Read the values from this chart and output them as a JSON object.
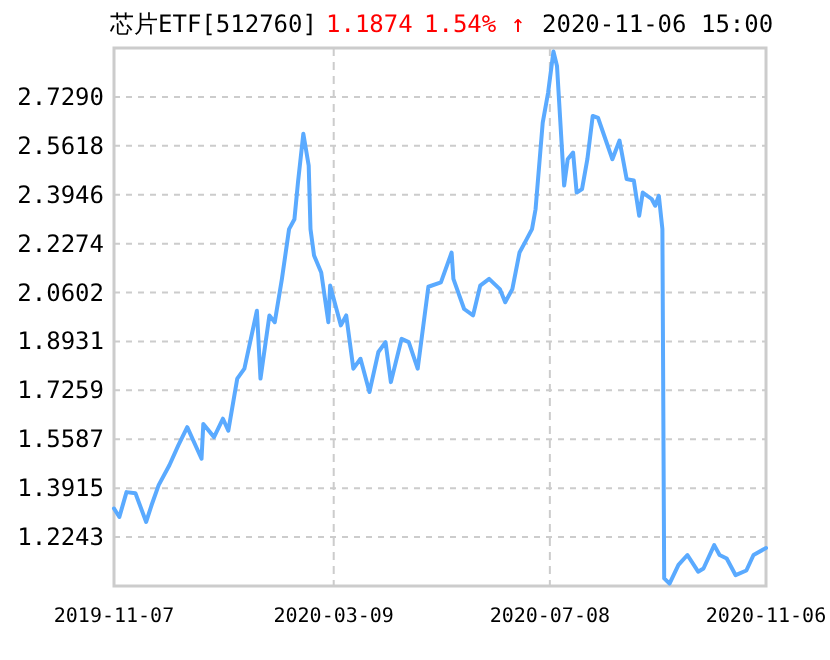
{
  "chart_data": {
    "type": "line",
    "title": "芯片ETF[512760]",
    "annotations": [
      "1.1874",
      "1.54% ↑",
      "2020-11-06 15:00"
    ],
    "x": [
      "2019-11-07",
      "2019-11-10",
      "2019-11-14",
      "2019-11-19",
      "2019-11-25",
      "2019-11-28",
      "2019-12-02",
      "2019-12-08",
      "2019-12-13",
      "2019-12-18",
      "2019-12-26",
      "2019-12-27",
      "2020-01-02",
      "2020-01-07",
      "2020-01-10",
      "2020-01-15",
      "2020-01-19",
      "2020-01-26",
      "2020-01-28",
      "2020-02-02",
      "2020-02-05",
      "2020-02-09",
      "2020-02-13",
      "2020-02-16",
      "2020-02-18",
      "2020-02-21",
      "2020-02-24",
      "2020-02-25",
      "2020-02-27",
      "2020-03-02",
      "2020-03-06",
      "2020-03-07",
      "2020-03-10",
      "2020-03-13",
      "2020-03-16",
      "2020-03-20",
      "2020-03-24",
      "2020-03-29",
      "2020-04-03",
      "2020-04-07",
      "2020-04-10",
      "2020-04-16",
      "2020-04-20",
      "2020-04-25",
      "2020-05-01",
      "2020-05-08",
      "2020-05-14",
      "2020-05-15",
      "2020-05-21",
      "2020-05-26",
      "2020-05-30",
      "2020-06-04",
      "2020-06-10",
      "2020-06-13",
      "2020-06-17",
      "2020-06-21",
      "2020-06-24",
      "2020-06-28",
      "2020-06-30",
      "2020-07-04",
      "2020-07-07",
      "2020-07-10",
      "2020-07-12",
      "2020-07-16",
      "2020-07-18",
      "2020-07-21",
      "2020-07-23",
      "2020-07-26",
      "2020-07-29",
      "2020-08-01",
      "2020-08-04",
      "2020-08-12",
      "2020-08-16",
      "2020-08-20",
      "2020-08-24",
      "2020-08-27",
      "2020-08-29",
      "2020-09-03",
      "2020-09-05",
      "2020-09-07",
      "2020-09-09",
      "2020-09-10",
      "2020-09-13",
      "2020-09-18",
      "2020-09-23",
      "2020-09-29",
      "2020-10-02",
      "2020-10-08",
      "2020-10-11",
      "2020-10-15",
      "2020-10-20",
      "2020-10-26",
      "2020-10-30",
      "2020-11-06"
    ],
    "series": [
      {
        "color": "#5aaaff",
        "values": [
          1.322,
          1.293,
          1.378,
          1.374,
          1.276,
          1.333,
          1.402,
          1.47,
          1.538,
          1.6,
          1.492,
          1.611,
          1.566,
          1.629,
          1.588,
          1.766,
          1.8,
          1.998,
          1.766,
          1.982,
          1.959,
          2.107,
          2.277,
          2.311,
          2.437,
          2.603,
          2.494,
          2.277,
          2.187,
          2.129,
          1.959,
          2.084,
          2.016,
          1.948,
          1.982,
          1.8,
          1.834,
          1.72,
          1.857,
          1.891,
          1.754,
          1.902,
          1.891,
          1.8,
          2.08,
          2.095,
          2.197,
          2.107,
          2.004,
          1.982,
          2.084,
          2.107,
          2.072,
          2.027,
          2.072,
          2.197,
          2.231,
          2.277,
          2.345,
          2.641,
          2.743,
          2.884,
          2.835,
          2.426,
          2.516,
          2.539,
          2.402,
          2.414,
          2.516,
          2.664,
          2.657,
          2.516,
          2.58,
          2.448,
          2.443,
          2.323,
          2.402,
          2.38,
          2.357,
          2.391,
          2.277,
          1.083,
          1.065,
          1.129,
          1.163,
          1.106,
          1.117,
          1.197,
          1.163,
          1.151,
          1.094,
          1.11,
          1.163,
          1.187
        ]
      }
    ],
    "xlim": [
      "2019-11-07",
      "2020-11-06"
    ],
    "xticks": [
      "2019-11-07",
      "2020-03-09",
      "2020-07-08",
      "2020-11-06"
    ],
    "ylim": [
      1.0571,
      2.8962
    ],
    "yticks": [
      1.2243,
      1.3915,
      1.5587,
      1.7259,
      1.8931,
      2.0602,
      2.2274,
      2.3946,
      2.5618,
      {
        "value": 2.729,
        "label": "2.7290"
      }
    ],
    "grid": true,
    "line_style": "solid"
  }
}
